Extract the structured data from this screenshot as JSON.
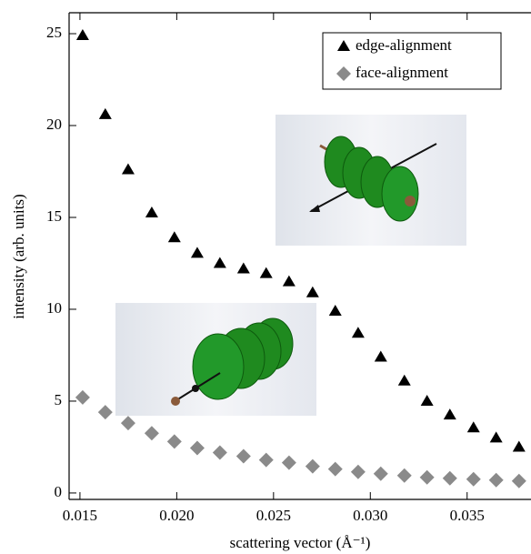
{
  "chart_data": {
    "type": "scatter",
    "xlabel": "scattering vector (Å⁻¹)",
    "ylabel": "intensity (arb. units)",
    "xlim": [
      0.01444,
      0.0383
    ],
    "ylim": [
      -0.35,
      26.14
    ],
    "xticks": [
      {
        "value": 0.015,
        "label": "0.015"
      },
      {
        "value": 0.02,
        "label": "0.020"
      },
      {
        "value": 0.025,
        "label": "0.025"
      },
      {
        "value": 0.03,
        "label": "0.030"
      },
      {
        "value": 0.035,
        "label": "0.035"
      }
    ],
    "yticks": [
      0,
      5,
      10,
      15,
      20,
      25
    ],
    "legend": "upper right",
    "series": [
      {
        "name": "edge-alignment",
        "color": "#000000",
        "marker": "triangle",
        "x": [
          0.01514,
          0.01631,
          0.01749,
          0.01871,
          0.01988,
          0.02106,
          0.02223,
          0.02345,
          0.02462,
          0.0258,
          0.02702,
          0.02819,
          0.02937,
          0.03054,
          0.03176,
          0.03293,
          0.03411,
          0.03533,
          0.0365,
          0.03768
        ],
        "values": [
          24.9,
          20.6,
          17.6,
          15.25,
          13.9,
          13.05,
          12.5,
          12.2,
          11.95,
          11.5,
          10.9,
          9.9,
          8.7,
          7.4,
          6.1,
          5.0,
          4.25,
          3.55,
          3.0,
          2.5
        ]
      },
      {
        "name": "face-alignment",
        "color": "#8a8a8a",
        "marker": "diamond",
        "x": [
          0.01514,
          0.01631,
          0.01749,
          0.01871,
          0.01988,
          0.02106,
          0.02223,
          0.02345,
          0.02462,
          0.0258,
          0.02702,
          0.02819,
          0.02937,
          0.03054,
          0.03176,
          0.03293,
          0.03411,
          0.03533,
          0.0365,
          0.03768
        ],
        "values": [
          5.2,
          4.4,
          3.8,
          3.25,
          2.8,
          2.45,
          2.2,
          2.0,
          1.8,
          1.65,
          1.45,
          1.3,
          1.15,
          1.05,
          0.95,
          0.85,
          0.8,
          0.75,
          0.7,
          0.65
        ]
      }
    ]
  }
}
